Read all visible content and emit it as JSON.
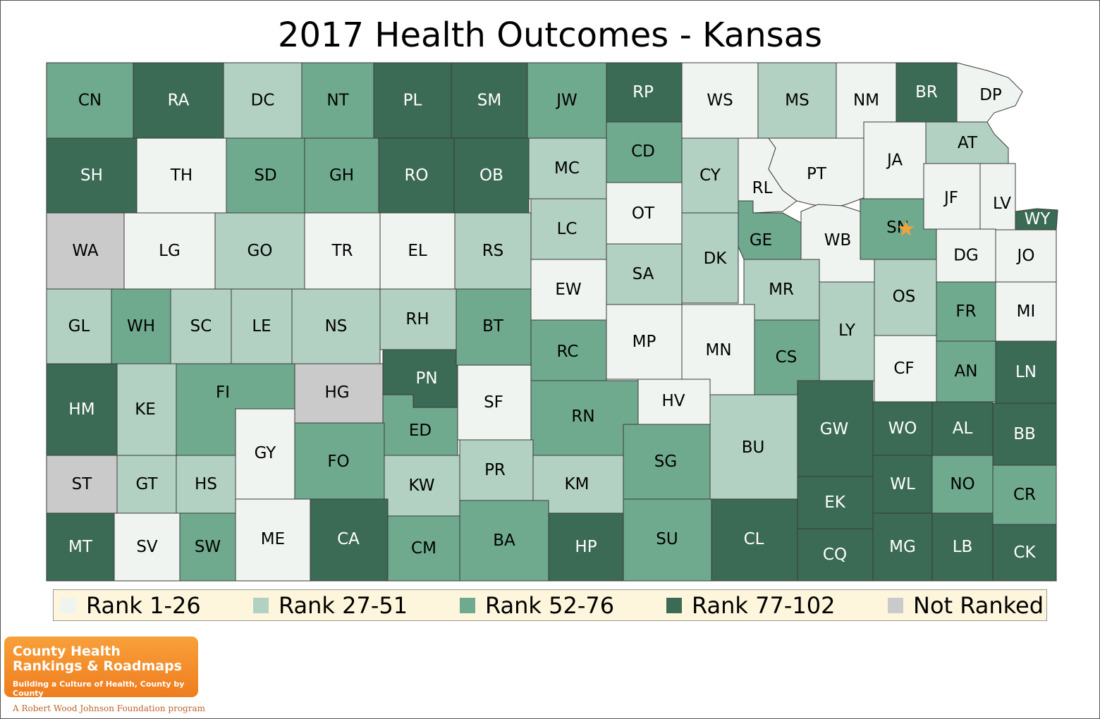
{
  "title": "2017 Health Outcomes - Kansas",
  "colors": {
    "rank_1_26": "#f0f4f1",
    "rank_27_51": "#b2d1c2",
    "rank_52_76": "#70aa8e",
    "rank_77_102": "#3b6a55",
    "not_ranked": "#cacaca",
    "legend_bg": "#fdf6dc",
    "star": "#f2a43a"
  },
  "legend": [
    {
      "label": "Rank 1-26",
      "key": "rank_1_26"
    },
    {
      "label": "Rank 27-51",
      "key": "rank_27_51"
    },
    {
      "label": "Rank 52-76",
      "key": "rank_52_76"
    },
    {
      "label": "Rank 77-102",
      "key": "rank_77_102"
    },
    {
      "label": "Not Ranked",
      "key": "not_ranked"
    }
  ],
  "counties": [
    {
      "abbr": "CN",
      "rank": "rank_52_76"
    },
    {
      "abbr": "RA",
      "rank": "rank_77_102"
    },
    {
      "abbr": "DC",
      "rank": "rank_27_51"
    },
    {
      "abbr": "NT",
      "rank": "rank_52_76"
    },
    {
      "abbr": "PL",
      "rank": "rank_77_102"
    },
    {
      "abbr": "SM",
      "rank": "rank_77_102"
    },
    {
      "abbr": "JW",
      "rank": "rank_52_76"
    },
    {
      "abbr": "RP",
      "rank": "rank_77_102"
    },
    {
      "abbr": "WS",
      "rank": "rank_1_26"
    },
    {
      "abbr": "MS",
      "rank": "rank_27_51"
    },
    {
      "abbr": "NM",
      "rank": "rank_1_26"
    },
    {
      "abbr": "BR",
      "rank": "rank_77_102"
    },
    {
      "abbr": "DP",
      "rank": "rank_1_26"
    },
    {
      "abbr": "SH",
      "rank": "rank_77_102"
    },
    {
      "abbr": "TH",
      "rank": "rank_1_26"
    },
    {
      "abbr": "SD",
      "rank": "rank_52_76"
    },
    {
      "abbr": "GH",
      "rank": "rank_52_76"
    },
    {
      "abbr": "RO",
      "rank": "rank_77_102"
    },
    {
      "abbr": "OB",
      "rank": "rank_77_102"
    },
    {
      "abbr": "MC",
      "rank": "rank_27_51"
    },
    {
      "abbr": "CD",
      "rank": "rank_52_76"
    },
    {
      "abbr": "CY",
      "rank": "rank_27_51"
    },
    {
      "abbr": "RL",
      "rank": "rank_1_26"
    },
    {
      "abbr": "PT",
      "rank": "rank_1_26"
    },
    {
      "abbr": "JA",
      "rank": "rank_1_26"
    },
    {
      "abbr": "AT",
      "rank": "rank_27_51"
    },
    {
      "abbr": "WA",
      "rank": "not_ranked"
    },
    {
      "abbr": "LG",
      "rank": "rank_1_26"
    },
    {
      "abbr": "GO",
      "rank": "rank_27_51"
    },
    {
      "abbr": "TR",
      "rank": "rank_1_26"
    },
    {
      "abbr": "EL",
      "rank": "rank_1_26"
    },
    {
      "abbr": "RS",
      "rank": "rank_27_51"
    },
    {
      "abbr": "LC",
      "rank": "rank_27_51"
    },
    {
      "abbr": "OT",
      "rank": "rank_1_26"
    },
    {
      "abbr": "DK",
      "rank": "rank_27_51"
    },
    {
      "abbr": "GE",
      "rank": "rank_52_76"
    },
    {
      "abbr": "WB",
      "rank": "rank_1_26"
    },
    {
      "abbr": "SN",
      "rank": "rank_52_76"
    },
    {
      "abbr": "JF",
      "rank": "rank_1_26"
    },
    {
      "abbr": "LV",
      "rank": "rank_1_26"
    },
    {
      "abbr": "WY",
      "rank": "rank_77_102"
    },
    {
      "abbr": "DG",
      "rank": "rank_1_26"
    },
    {
      "abbr": "JO",
      "rank": "rank_1_26"
    },
    {
      "abbr": "EW",
      "rank": "rank_1_26"
    },
    {
      "abbr": "SA",
      "rank": "rank_27_51"
    },
    {
      "abbr": "MR",
      "rank": "rank_27_51"
    },
    {
      "abbr": "OS",
      "rank": "rank_27_51"
    },
    {
      "abbr": "GL",
      "rank": "rank_27_51"
    },
    {
      "abbr": "WH",
      "rank": "rank_52_76"
    },
    {
      "abbr": "SC",
      "rank": "rank_27_51"
    },
    {
      "abbr": "LE",
      "rank": "rank_27_51"
    },
    {
      "abbr": "NS",
      "rank": "rank_27_51"
    },
    {
      "abbr": "RH",
      "rank": "rank_27_51"
    },
    {
      "abbr": "BT",
      "rank": "rank_52_76"
    },
    {
      "abbr": "RC",
      "rank": "rank_52_76"
    },
    {
      "abbr": "MP",
      "rank": "rank_1_26"
    },
    {
      "abbr": "MN",
      "rank": "rank_1_26"
    },
    {
      "abbr": "CS",
      "rank": "rank_52_76"
    },
    {
      "abbr": "LY",
      "rank": "rank_27_51"
    },
    {
      "abbr": "FR",
      "rank": "rank_52_76"
    },
    {
      "abbr": "MI",
      "rank": "rank_1_26"
    },
    {
      "abbr": "HM",
      "rank": "rank_77_102"
    },
    {
      "abbr": "KE",
      "rank": "rank_27_51"
    },
    {
      "abbr": "FI",
      "rank": "rank_52_76"
    },
    {
      "abbr": "HG",
      "rank": "not_ranked"
    },
    {
      "abbr": "PN",
      "rank": "rank_77_102"
    },
    {
      "abbr": "SF",
      "rank": "rank_1_26"
    },
    {
      "abbr": "RN",
      "rank": "rank_52_76"
    },
    {
      "abbr": "HV",
      "rank": "rank_1_26"
    },
    {
      "abbr": "CF",
      "rank": "rank_1_26"
    },
    {
      "abbr": "AN",
      "rank": "rank_52_76"
    },
    {
      "abbr": "LN",
      "rank": "rank_77_102"
    },
    {
      "abbr": "GY",
      "rank": "rank_1_26"
    },
    {
      "abbr": "ED",
      "rank": "rank_52_76"
    },
    {
      "abbr": "FO",
      "rank": "rank_52_76"
    },
    {
      "abbr": "SG",
      "rank": "rank_52_76"
    },
    {
      "abbr": "BU",
      "rank": "rank_27_51"
    },
    {
      "abbr": "GW",
      "rank": "rank_77_102"
    },
    {
      "abbr": "WO",
      "rank": "rank_77_102"
    },
    {
      "abbr": "AL",
      "rank": "rank_77_102"
    },
    {
      "abbr": "BB",
      "rank": "rank_77_102"
    },
    {
      "abbr": "ST",
      "rank": "not_ranked"
    },
    {
      "abbr": "GT",
      "rank": "rank_27_51"
    },
    {
      "abbr": "HS",
      "rank": "rank_27_51"
    },
    {
      "abbr": "PR",
      "rank": "rank_27_51"
    },
    {
      "abbr": "KW",
      "rank": "rank_27_51"
    },
    {
      "abbr": "KM",
      "rank": "rank_27_51"
    },
    {
      "abbr": "EK",
      "rank": "rank_77_102"
    },
    {
      "abbr": "WL",
      "rank": "rank_77_102"
    },
    {
      "abbr": "NO",
      "rank": "rank_52_76"
    },
    {
      "abbr": "CR",
      "rank": "rank_52_76"
    },
    {
      "abbr": "MT",
      "rank": "rank_77_102"
    },
    {
      "abbr": "SV",
      "rank": "rank_1_26"
    },
    {
      "abbr": "SW",
      "rank": "rank_52_76"
    },
    {
      "abbr": "ME",
      "rank": "rank_1_26"
    },
    {
      "abbr": "CA",
      "rank": "rank_77_102"
    },
    {
      "abbr": "CM",
      "rank": "rank_52_76"
    },
    {
      "abbr": "BA",
      "rank": "rank_52_76"
    },
    {
      "abbr": "HP",
      "rank": "rank_77_102"
    },
    {
      "abbr": "SU",
      "rank": "rank_52_76"
    },
    {
      "abbr": "CL",
      "rank": "rank_77_102"
    },
    {
      "abbr": "CQ",
      "rank": "rank_77_102"
    },
    {
      "abbr": "MG",
      "rank": "rank_77_102"
    },
    {
      "abbr": "LB",
      "rank": "rank_77_102"
    },
    {
      "abbr": "CK",
      "rank": "rank_77_102"
    }
  ],
  "highlight": {
    "county": "SN",
    "marker": "★"
  },
  "branding": {
    "line1": "County Health",
    "line2": "Rankings & Roadmaps",
    "tagline": "Building a Culture of Health, County by County",
    "foundation": "A Robert Wood Johnson Foundation program"
  }
}
